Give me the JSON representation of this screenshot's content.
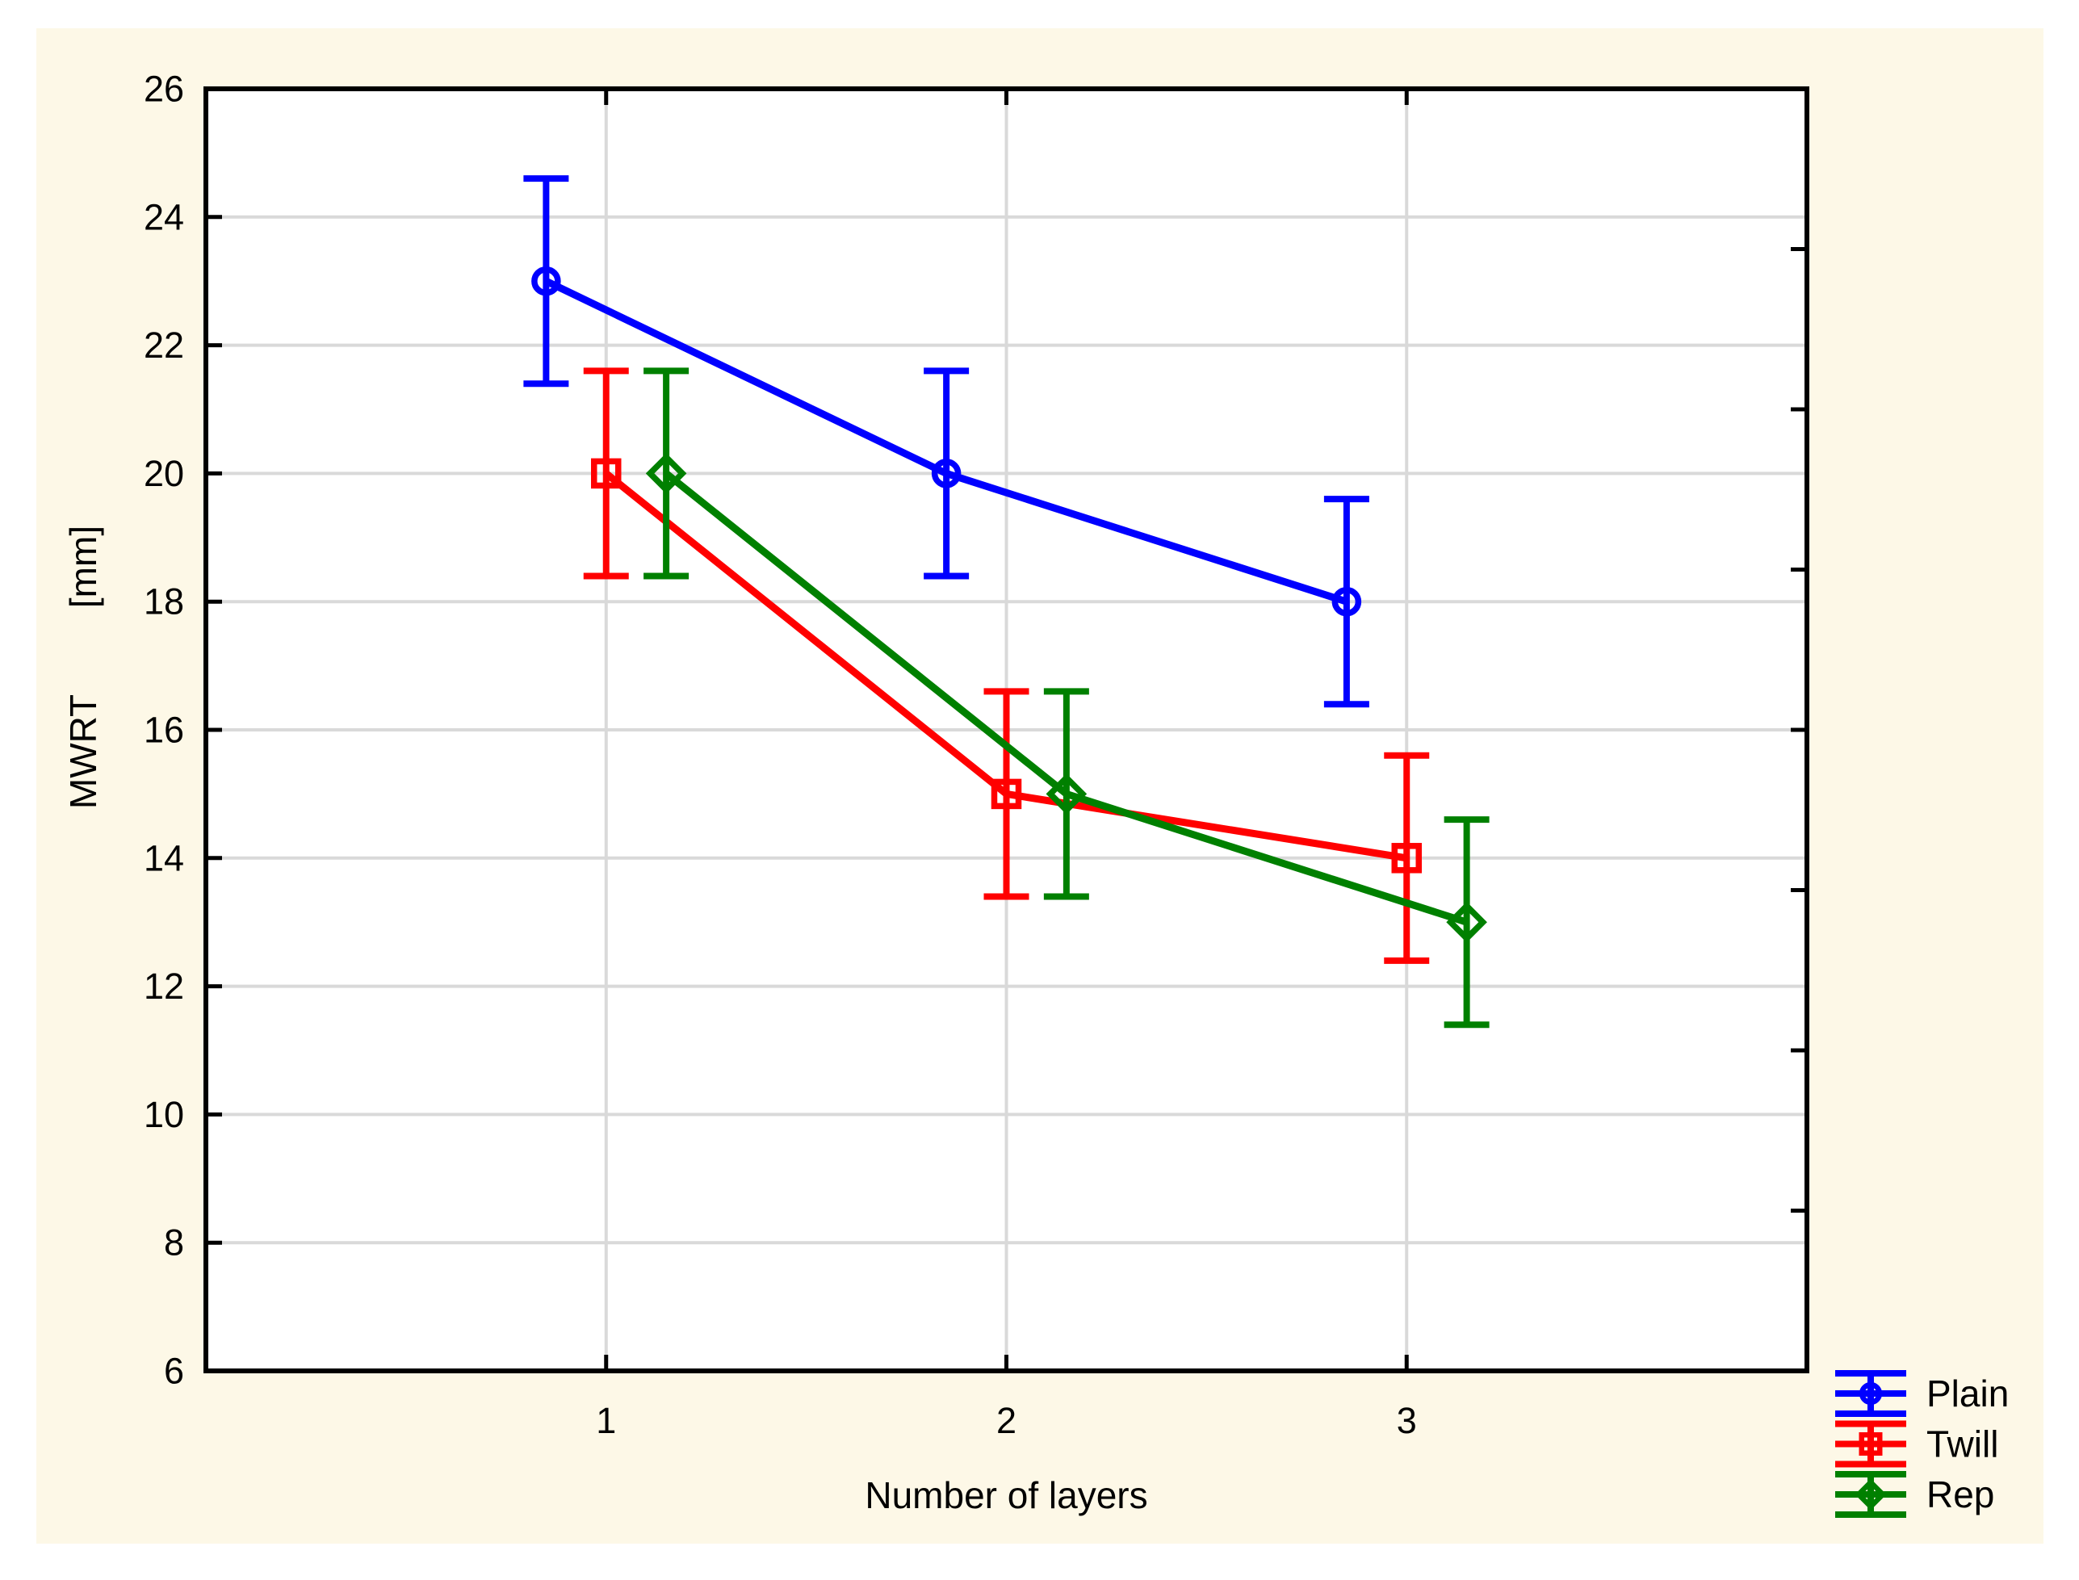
{
  "figure": {
    "background": "#FFFFFF",
    "panel_color": "#FDF8E7",
    "plot_background": "#FFFFFF",
    "frame_color": "#000000",
    "grid_color": "#D9D9D9",
    "text_color": "#000000"
  },
  "chart_data": {
    "type": "line",
    "title": "",
    "xlabel": "Number of layers",
    "ylabel": "MWRT [mm]",
    "ylabel_parts": [
      "MWRT",
      "[mm]"
    ],
    "xlim": [
      0,
      4
    ],
    "ylim": [
      6,
      26
    ],
    "x_ticks": [
      1,
      2,
      3
    ],
    "y_ticks": [
      6,
      8,
      10,
      12,
      14,
      16,
      18,
      20,
      22,
      24,
      26
    ],
    "right_minor_ticks": [
      8.5,
      11,
      13.5,
      16,
      18.5,
      21,
      23.5
    ],
    "grid": true,
    "legend_position": "bottom-right",
    "series": [
      {
        "name": "Plain",
        "color": "#0000FF",
        "marker": "circle",
        "x": [
          1,
          2,
          3
        ],
        "x_offset": -0.15,
        "values": [
          23,
          20,
          18
        ],
        "errors": [
          1.6,
          1.6,
          1.6
        ]
      },
      {
        "name": "Twill",
        "color": "#FF0000",
        "marker": "square",
        "x": [
          1,
          2,
          3
        ],
        "x_offset": 0,
        "values": [
          20,
          15,
          14
        ],
        "errors": [
          1.6,
          1.6,
          1.6
        ]
      },
      {
        "name": "Rep",
        "color": "#008000",
        "marker": "diamond",
        "x": [
          1,
          2,
          3
        ],
        "x_offset": 0.15,
        "values": [
          20,
          15,
          13
        ],
        "errors": [
          1.6,
          1.6,
          1.6
        ]
      }
    ]
  },
  "legend": {
    "items": [
      "Plain",
      "Twill",
      "Rep"
    ]
  }
}
